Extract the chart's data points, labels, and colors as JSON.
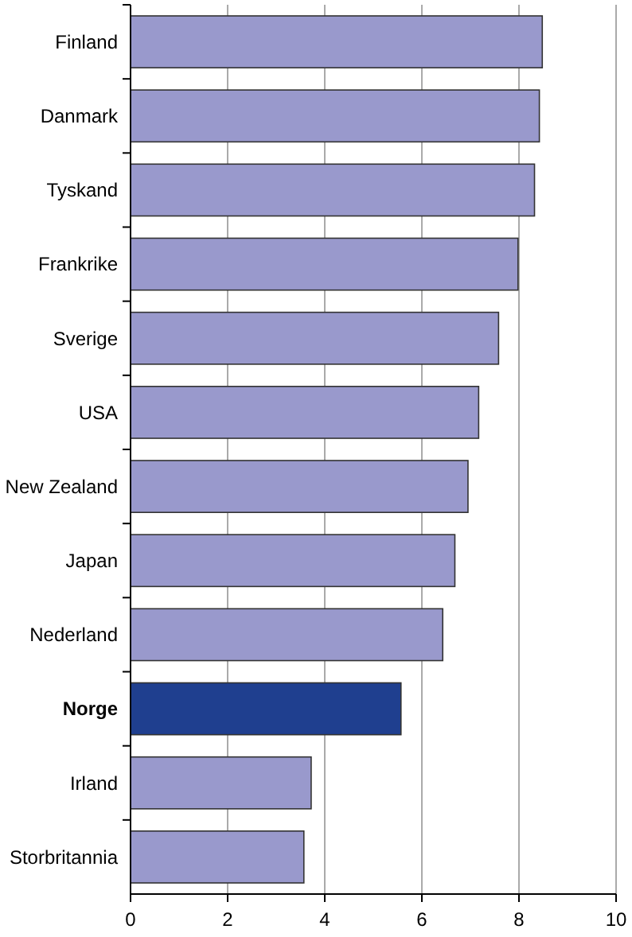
{
  "chart_data": {
    "type": "bar",
    "orientation": "horizontal",
    "categories": [
      "Finland",
      "Danmark",
      "Tyskand",
      "Frankrike",
      "Sverige",
      "USA",
      "New Zealand",
      "Japan",
      "Nederland",
      "Norge",
      "Irland",
      "Storbritannia"
    ],
    "values": [
      8.48,
      8.42,
      8.32,
      7.98,
      7.58,
      7.17,
      6.95,
      6.68,
      6.43,
      5.57,
      3.72,
      3.57
    ],
    "colors": [
      "#9999cc",
      "#9999cc",
      "#9999cc",
      "#9999cc",
      "#9999cc",
      "#9999cc",
      "#9999cc",
      "#9999cc",
      "#9999cc",
      "#1f3f8f",
      "#9999cc",
      "#9999cc"
    ],
    "xlim": [
      0,
      10
    ],
    "xticks": [
      0,
      2,
      4,
      6,
      8,
      10
    ],
    "grid": "x"
  }
}
